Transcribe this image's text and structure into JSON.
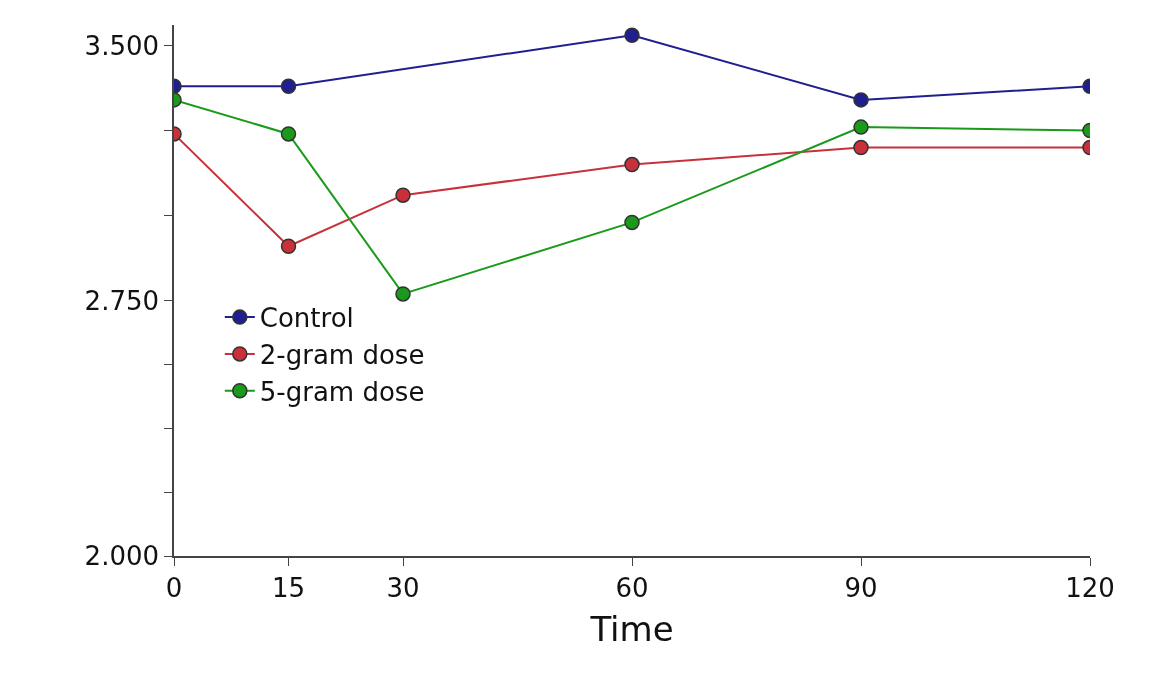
{
  "chart_data": {
    "type": "line",
    "xlabel": "Time",
    "x": [
      0,
      15,
      30,
      60,
      90,
      120
    ],
    "series": [
      {
        "name": "Control",
        "color": "#1f1f8f",
        "values": [
          3.38,
          3.38,
          null,
          3.53,
          3.34,
          3.38
        ]
      },
      {
        "name": "2-gram dose",
        "color": "#c8303a",
        "values": [
          3.24,
          2.91,
          3.06,
          3.15,
          3.2,
          3.2
        ]
      },
      {
        "name": "5-gram dose",
        "color": "#1a9a1a",
        "values": [
          3.34,
          3.24,
          2.77,
          2.98,
          3.26,
          3.25
        ]
      }
    ],
    "xlim": [
      0,
      120
    ],
    "xticks": [
      0,
      15,
      30,
      60,
      90,
      120
    ],
    "ylim": [
      2.0,
      3.56
    ],
    "yticks": [
      {
        "value": 2.0,
        "label": "2.000"
      },
      {
        "value": 2.1875,
        "label": null
      },
      {
        "value": 2.375,
        "label": null
      },
      {
        "value": 2.5625,
        "label": null
      },
      {
        "value": 2.75,
        "label": "2.750"
      },
      {
        "value": 3.0,
        "label": null
      },
      {
        "value": 3.25,
        "label": null
      },
      {
        "value": 3.5,
        "label": "3.500"
      }
    ],
    "marker": "circle",
    "line_style": "solid",
    "legend": "left"
  }
}
